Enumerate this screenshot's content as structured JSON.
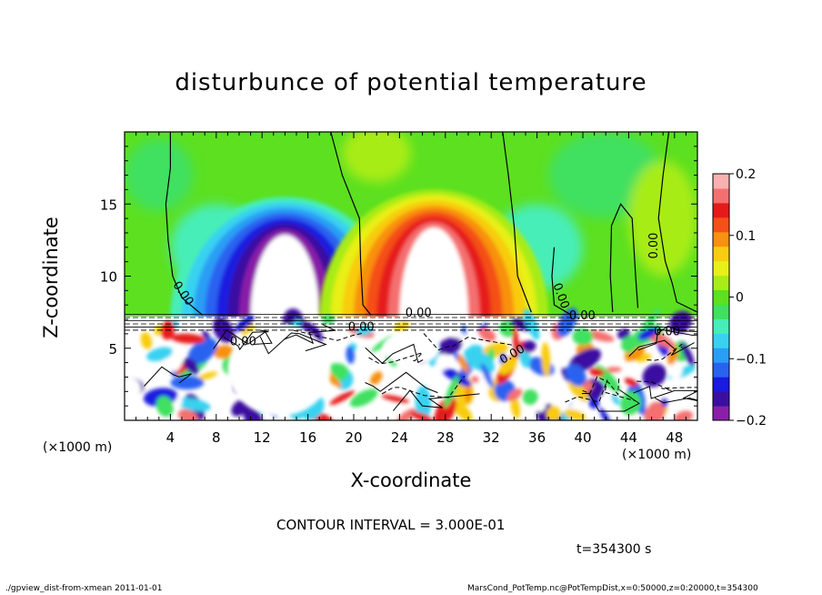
{
  "chart_data": {
    "type": "heatmap",
    "title": "disturbunce of potential temperature",
    "xlabel": "X-coordinate",
    "ylabel": "Z-coordinate",
    "x_unit_left": "(×1000 m)",
    "x_unit_right": "(×1000 m)",
    "xlim": [
      0,
      50
    ],
    "ylim": [
      0,
      20
    ],
    "x_ticks": [
      4,
      8,
      12,
      16,
      20,
      24,
      28,
      32,
      36,
      40,
      44,
      48
    ],
    "y_ticks": [
      5,
      10,
      15
    ],
    "colorbar": {
      "range": [
        -0.2,
        0.2
      ],
      "ticks": [
        "0.2",
        "0.1",
        "0",
        "−0.1",
        "−0.2"
      ],
      "tick_values": [
        0.2,
        0.1,
        0,
        -0.1,
        -0.2
      ],
      "colors": [
        "#8a1fa8",
        "#3a0fa0",
        "#1a1ae0",
        "#2a62f0",
        "#2a9ef5",
        "#38d2f0",
        "#46eeb8",
        "#40e060",
        "#5ce020",
        "#a8ec18",
        "#e8f018",
        "#f8cc10",
        "#f89010",
        "#f45018",
        "#e61a1a",
        "#f47070",
        "#f8b0b0"
      ]
    },
    "features": [
      {
        "kind": "cold",
        "center_x": 14,
        "top_z": 15.5,
        "peak": -0.2
      },
      {
        "kind": "warm",
        "center_x": 27,
        "top_z": 16,
        "peak": 0.2
      }
    ],
    "contour_labels": [
      "0.00",
      "0.00",
      "0.00",
      "0.00",
      "0.00",
      "0.00",
      "0.00",
      "0.00",
      "0.00"
    ],
    "contour_interval": "CONTOUR INTERVAL = 3.000E-01",
    "time": "t=354300 s"
  },
  "footer": {
    "left": "./gpview_dist-from-xmean   2011-01-01",
    "right": "MarsCond_PotTemp.nc@PotTempDist,x=0:50000,z=0:20000,t=354300"
  }
}
